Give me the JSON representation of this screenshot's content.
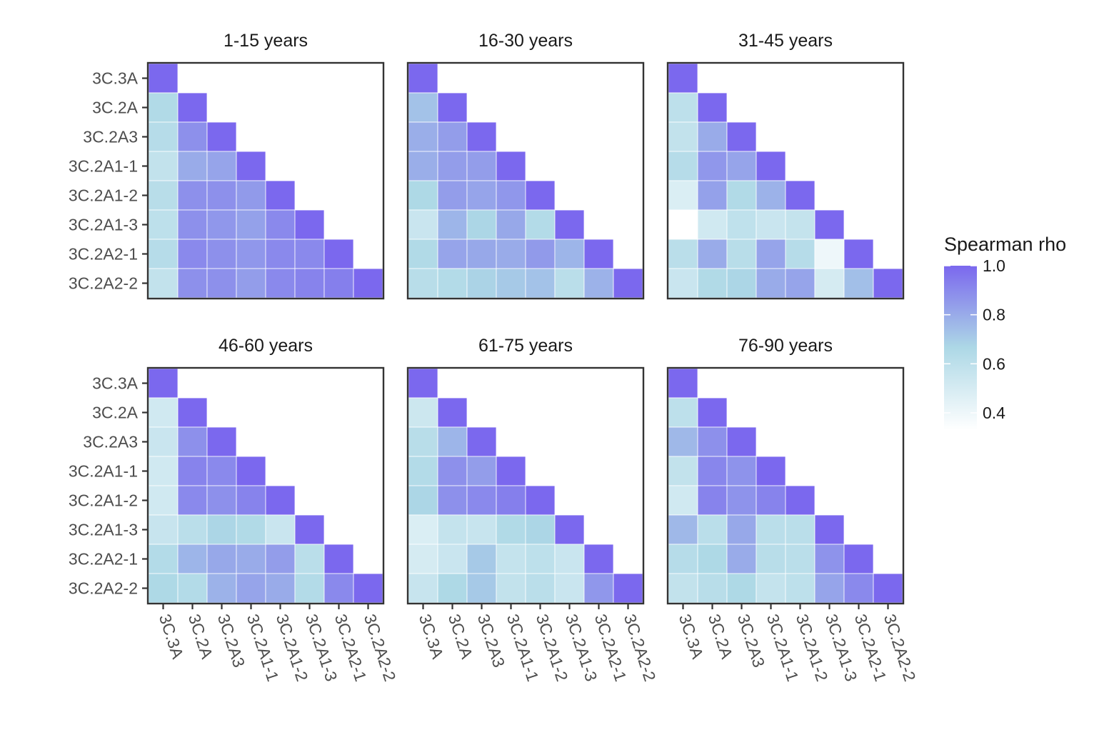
{
  "chart_data": {
    "type": "heatmap",
    "layout": "facet-grid 2x3, lower-triangle correlation matrices",
    "labels": [
      "3C.3A",
      "3C.2A",
      "3C.2A3",
      "3C.2A1-1",
      "3C.2A1-2",
      "3C.2A1-3",
      "3C.2A2-1",
      "3C.2A2-2"
    ],
    "colors": {
      "low": "#ffffff",
      "mid": "#add8e6",
      "high": "#7b68ee",
      "frame": "#333333",
      "tick_text": "#4d4d4d"
    },
    "legend": {
      "title": "Spearman rho",
      "placement": "right",
      "ticks": [
        "1.0",
        "0.8",
        "0.6",
        "0.4"
      ],
      "tick_values": [
        1.0,
        0.8,
        0.6,
        0.4
      ],
      "range": [
        0.33,
        1.0
      ]
    },
    "panels": [
      {
        "title": "1-15 years",
        "rows": [
          [
            1.0
          ],
          [
            0.65,
            1.0
          ],
          [
            0.63,
            0.88,
            1.0
          ],
          [
            0.58,
            0.8,
            0.82,
            1.0
          ],
          [
            0.62,
            0.88,
            0.88,
            0.85,
            1.0
          ],
          [
            0.6,
            0.88,
            0.86,
            0.83,
            0.9,
            1.0
          ],
          [
            0.63,
            0.9,
            0.88,
            0.86,
            0.9,
            0.9,
            1.0
          ],
          [
            0.58,
            0.88,
            0.88,
            0.84,
            0.9,
            0.92,
            0.93,
            1.0
          ]
        ]
      },
      {
        "title": "16-30 years",
        "rows": [
          [
            1.0
          ],
          [
            0.73,
            1.0
          ],
          [
            0.79,
            0.84,
            1.0
          ],
          [
            0.79,
            0.84,
            0.84,
            1.0
          ],
          [
            0.66,
            0.84,
            0.82,
            0.86,
            1.0
          ],
          [
            0.55,
            0.77,
            0.67,
            0.81,
            0.64,
            1.0
          ],
          [
            0.65,
            0.82,
            0.81,
            0.8,
            0.85,
            0.77,
            1.0
          ],
          [
            0.62,
            0.64,
            0.68,
            0.71,
            0.73,
            0.61,
            0.78,
            1.0
          ]
        ]
      },
      {
        "title": "31-45 years",
        "rows": [
          [
            1.0
          ],
          [
            0.6,
            1.0
          ],
          [
            0.58,
            0.8,
            1.0
          ],
          [
            0.63,
            0.86,
            0.82,
            1.0
          ],
          [
            0.48,
            0.83,
            0.65,
            0.78,
            1.0
          ],
          [
            0.33,
            0.52,
            0.59,
            0.55,
            0.57,
            1.0
          ],
          [
            0.61,
            0.8,
            0.62,
            0.82,
            0.63,
            0.4,
            1.0
          ],
          [
            0.55,
            0.65,
            0.67,
            0.8,
            0.82,
            0.5,
            0.74,
            1.0
          ]
        ]
      },
      {
        "title": "46-60 years",
        "rows": [
          [
            1.0
          ],
          [
            0.52,
            1.0
          ],
          [
            0.55,
            0.88,
            1.0
          ],
          [
            0.52,
            0.92,
            0.9,
            1.0
          ],
          [
            0.52,
            0.9,
            0.88,
            0.92,
            1.0
          ],
          [
            0.56,
            0.61,
            0.67,
            0.65,
            0.55,
            1.0
          ],
          [
            0.64,
            0.77,
            0.81,
            0.8,
            0.84,
            0.61,
            1.0
          ],
          [
            0.66,
            0.64,
            0.78,
            0.82,
            0.8,
            0.64,
            0.9,
            1.0
          ]
        ]
      },
      {
        "title": "61-75 years",
        "rows": [
          [
            1.0
          ],
          [
            0.54,
            1.0
          ],
          [
            0.62,
            0.77,
            1.0
          ],
          [
            0.64,
            0.88,
            0.84,
            1.0
          ],
          [
            0.67,
            0.88,
            0.9,
            0.93,
            1.0
          ],
          [
            0.48,
            0.57,
            0.56,
            0.65,
            0.67,
            1.0
          ],
          [
            0.5,
            0.55,
            0.71,
            0.57,
            0.6,
            0.55,
            1.0
          ],
          [
            0.56,
            0.66,
            0.71,
            0.58,
            0.61,
            0.55,
            0.86,
            1.0
          ]
        ]
      },
      {
        "title": "76-90 years",
        "rows": [
          [
            1.0
          ],
          [
            0.6,
            1.0
          ],
          [
            0.76,
            0.88,
            1.0
          ],
          [
            0.58,
            0.91,
            0.87,
            1.0
          ],
          [
            0.52,
            0.92,
            0.87,
            0.92,
            1.0
          ],
          [
            0.76,
            0.61,
            0.81,
            0.61,
            0.61,
            1.0
          ],
          [
            0.63,
            0.66,
            0.8,
            0.62,
            0.61,
            0.87,
            1.0
          ],
          [
            0.58,
            0.62,
            0.66,
            0.57,
            0.6,
            0.82,
            0.9,
            1.0
          ]
        ]
      }
    ]
  }
}
